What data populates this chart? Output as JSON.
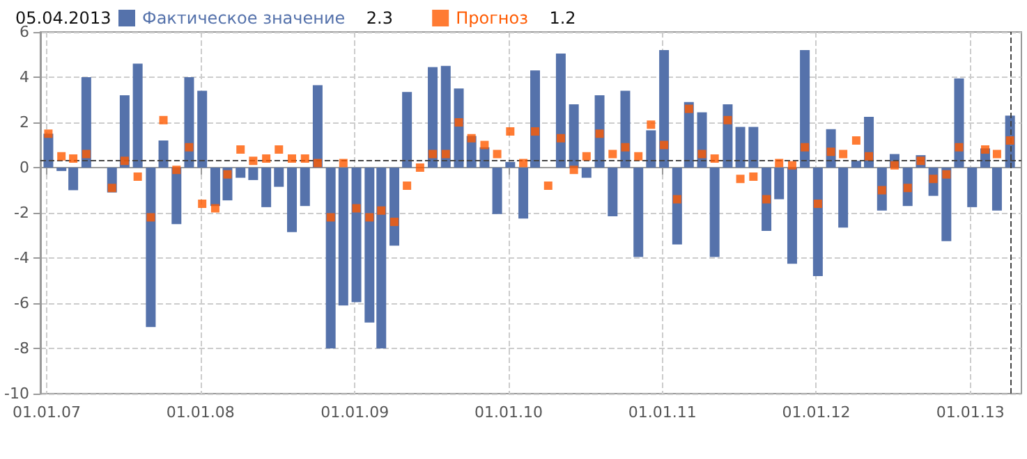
{
  "chart_data": {
    "type": "bar",
    "title": "05.04.2013",
    "x": [
      "2007-01-05",
      "2007-02-05",
      "2007-03-05",
      "2007-04-05",
      "2007-06-05",
      "2007-07-05",
      "2007-08-05",
      "2007-09-05",
      "2007-10-05",
      "2007-11-05",
      "2007-12-05",
      "2008-01-05",
      "2008-02-05",
      "2008-03-05",
      "2008-04-05",
      "2008-05-05",
      "2008-06-05",
      "2008-07-05",
      "2008-08-05",
      "2008-09-05",
      "2008-10-05",
      "2008-11-05",
      "2008-12-05",
      "2009-01-05",
      "2009-02-05",
      "2009-03-05",
      "2009-04-05",
      "2009-05-05",
      "2009-06-05",
      "2009-07-05",
      "2009-08-05",
      "2009-09-05",
      "2009-10-05",
      "2009-11-05",
      "2009-12-05",
      "2010-01-05",
      "2010-02-05",
      "2010-03-05",
      "2010-04-05",
      "2010-05-05",
      "2010-06-05",
      "2010-07-05",
      "2010-08-05",
      "2010-09-05",
      "2010-10-05",
      "2010-11-05",
      "2010-12-05",
      "2011-01-05",
      "2011-02-05",
      "2011-03-05",
      "2011-04-05",
      "2011-05-05",
      "2011-06-05",
      "2011-07-05",
      "2011-08-05",
      "2011-09-05",
      "2011-10-05",
      "2011-11-05",
      "2011-12-05",
      "2012-01-05",
      "2012-02-05",
      "2012-03-05",
      "2012-04-05",
      "2012-05-05",
      "2012-06-05",
      "2012-07-05",
      "2012-08-05",
      "2012-09-05",
      "2012-10-05",
      "2012-11-05",
      "2012-12-05",
      "2013-01-05",
      "2013-02-05",
      "2013-03-05",
      "2013-04-05"
    ],
    "series": [
      {
        "name": "Фактическое значение",
        "color": "#5572ab",
        "values": [
          1.5,
          -0.15,
          -1.0,
          4.0,
          -1.1,
          3.2,
          4.6,
          -7.05,
          1.2,
          -2.5,
          4.0,
          3.4,
          -1.7,
          -1.45,
          -0.45,
          -0.55,
          -1.75,
          -0.85,
          -2.85,
          -1.7,
          3.65,
          -8.0,
          -6.1,
          -5.95,
          -6.85,
          -8.0,
          -3.45,
          3.35,
          null,
          4.45,
          4.5,
          3.5,
          1.4,
          0.9,
          -2.05,
          0.25,
          -2.25,
          4.3,
          null,
          5.05,
          2.8,
          -0.45,
          3.2,
          -2.15,
          3.4,
          -3.95,
          1.65,
          5.2,
          -3.4,
          2.9,
          2.45,
          -3.95,
          2.8,
          1.8,
          1.8,
          -2.8,
          -1.4,
          -4.25,
          5.2,
          -4.8,
          1.7,
          -2.65,
          0.3,
          2.25,
          -1.9,
          0.6,
          -1.7,
          0.55,
          -1.25,
          -3.25,
          3.95,
          -1.75,
          0.85,
          -1.9,
          2.3
        ]
      },
      {
        "name": "Прогноз",
        "type": "scatter",
        "marker": "square",
        "color": "#ff5a00",
        "values": [
          1.5,
          0.5,
          0.4,
          0.6,
          -0.9,
          0.3,
          -0.4,
          -2.2,
          2.1,
          -0.1,
          0.9,
          -1.6,
          -1.8,
          -0.3,
          0.8,
          0.3,
          0.4,
          0.8,
          0.4,
          0.4,
          0.2,
          -2.2,
          0.2,
          -1.8,
          -2.2,
          -1.9,
          -2.4,
          -0.8,
          0.0,
          0.6,
          0.6,
          2.0,
          1.3,
          1.0,
          0.6,
          1.6,
          0.2,
          1.6,
          -0.8,
          1.3,
          -0.1,
          0.5,
          1.5,
          0.6,
          0.9,
          0.5,
          1.9,
          1.0,
          -1.4,
          2.6,
          0.6,
          0.4,
          2.1,
          -0.5,
          -0.4,
          -1.4,
          0.2,
          0.1,
          0.9,
          -1.6,
          0.7,
          0.6,
          1.2,
          0.5,
          -1.0,
          0.1,
          -0.9,
          0.3,
          -0.5,
          -0.3,
          0.9,
          null,
          0.8,
          0.6,
          1.2
        ]
      }
    ],
    "annotations": [
      "2.3",
      "1.2"
    ],
    "xlim": [
      "2006-12-17",
      "2013-05-02"
    ],
    "xticks": [
      {
        "value": "2007-01-01",
        "label": "01.01.07"
      },
      {
        "value": "2008-01-01",
        "label": "01.01.08"
      },
      {
        "value": "2009-01-01",
        "label": "01.01.09"
      },
      {
        "value": "2010-01-01",
        "label": "01.01.10"
      },
      {
        "value": "2011-01-01",
        "label": "01.01.11"
      },
      {
        "value": "2012-01-01",
        "label": "01.01.12"
      },
      {
        "value": "2013-01-01",
        "label": "01.01.13"
      }
    ],
    "ylim": [
      -10,
      6
    ],
    "yticks": [
      -10,
      -8,
      -6,
      -4,
      -2,
      0,
      2,
      4,
      6
    ],
    "ref_lines": [
      {
        "axis": "y",
        "value": 0.3,
        "color": "#444444",
        "line_style": "dashed"
      },
      {
        "axis": "x",
        "value": "2013-04-05",
        "color": "#444444",
        "line_style": "dashed"
      }
    ],
    "grid": true,
    "legend": "top left"
  }
}
